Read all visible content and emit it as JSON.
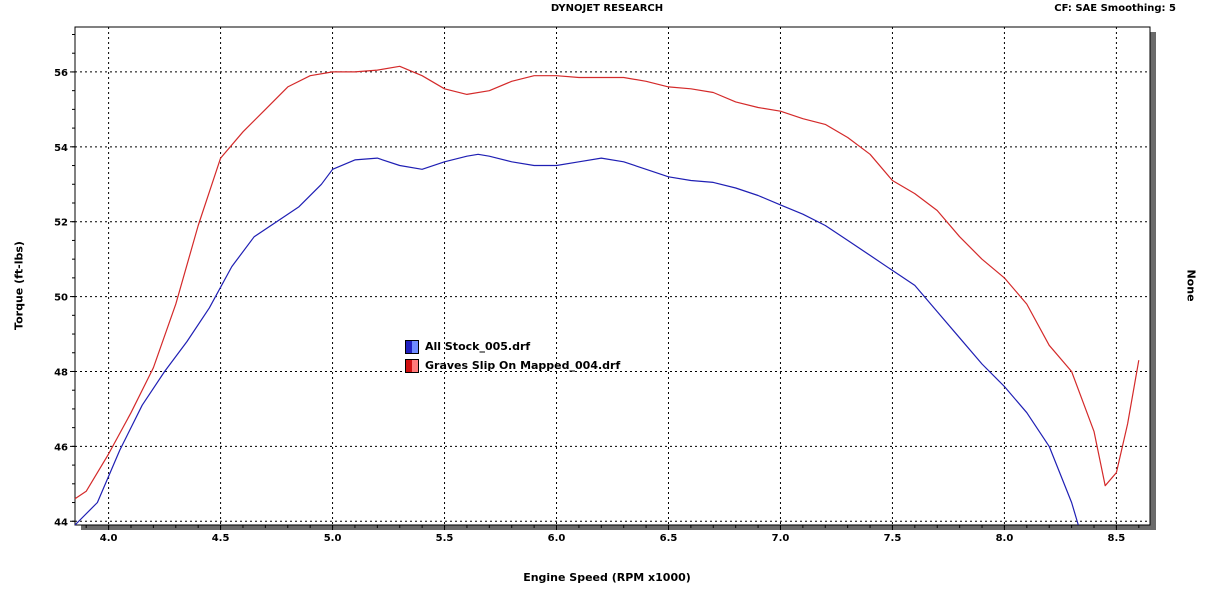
{
  "header": {
    "title": "DYNOJET RESEARCH",
    "cf_text": "CF: SAE  Smoothing: 5"
  },
  "chart_data": {
    "type": "line",
    "xlabel": "Engine Speed (RPM x1000)",
    "ylabel": "Torque (ft-lbs)",
    "y2label": "None",
    "xlim": [
      3.85,
      8.65
    ],
    "ylim": [
      43.9,
      57.2
    ],
    "x_ticks": [
      "4.0",
      "4.5",
      "5.0",
      "5.5",
      "6.0",
      "6.5",
      "7.0",
      "7.5",
      "8.0",
      "8.5"
    ],
    "y_ticks": [
      "44",
      "46",
      "48",
      "50",
      "52",
      "54",
      "56"
    ],
    "grid": true,
    "legend_position": "center-left",
    "series": [
      {
        "name": "All Stock_005.drf",
        "color": "#1f1fb4",
        "x": [
          3.85,
          3.95,
          4.05,
          4.15,
          4.25,
          4.35,
          4.45,
          4.55,
          4.65,
          4.75,
          4.85,
          4.95,
          5.0,
          5.1,
          5.2,
          5.3,
          5.4,
          5.5,
          5.6,
          5.65,
          5.7,
          5.8,
          5.9,
          6.0,
          6.1,
          6.2,
          6.3,
          6.4,
          6.5,
          6.6,
          6.7,
          6.8,
          6.9,
          7.0,
          7.1,
          7.2,
          7.3,
          7.4,
          7.5,
          7.6,
          7.7,
          7.8,
          7.9,
          8.0,
          8.1,
          8.2,
          8.3,
          8.33
        ],
        "y": [
          43.9,
          44.5,
          45.9,
          47.1,
          48.0,
          48.8,
          49.7,
          50.8,
          51.6,
          52.0,
          52.4,
          53.0,
          53.4,
          53.65,
          53.7,
          53.5,
          53.4,
          53.6,
          53.75,
          53.8,
          53.75,
          53.6,
          53.5,
          53.5,
          53.6,
          53.7,
          53.6,
          53.4,
          53.2,
          53.1,
          53.05,
          52.9,
          52.7,
          52.45,
          52.2,
          51.9,
          51.5,
          51.1,
          50.7,
          50.3,
          49.6,
          48.9,
          48.2,
          47.6,
          46.9,
          46.0,
          44.5,
          43.9
        ]
      },
      {
        "name": "Graves Slip On Mapped_004.drf",
        "color": "#d42a2a",
        "x": [
          3.85,
          3.9,
          4.0,
          4.1,
          4.2,
          4.3,
          4.4,
          4.5,
          4.6,
          4.7,
          4.8,
          4.9,
          5.0,
          5.1,
          5.2,
          5.3,
          5.4,
          5.5,
          5.6,
          5.7,
          5.8,
          5.9,
          6.0,
          6.1,
          6.2,
          6.3,
          6.4,
          6.5,
          6.6,
          6.7,
          6.8,
          6.9,
          7.0,
          7.1,
          7.2,
          7.3,
          7.4,
          7.5,
          7.6,
          7.7,
          7.8,
          7.9,
          8.0,
          8.1,
          8.2,
          8.3,
          8.4,
          8.45,
          8.5,
          8.55,
          8.6
        ],
        "y": [
          44.6,
          44.8,
          45.8,
          46.9,
          48.1,
          49.8,
          51.9,
          53.7,
          54.4,
          55.0,
          55.6,
          55.9,
          56.0,
          56.0,
          56.05,
          56.15,
          55.9,
          55.55,
          55.4,
          55.5,
          55.75,
          55.9,
          55.9,
          55.85,
          55.85,
          55.85,
          55.75,
          55.6,
          55.55,
          55.45,
          55.2,
          55.05,
          54.95,
          54.75,
          54.6,
          54.25,
          53.8,
          53.1,
          52.75,
          52.3,
          51.6,
          51.0,
          50.5,
          49.8,
          48.7,
          48.0,
          46.4,
          44.95,
          45.3,
          46.6,
          48.3
        ]
      }
    ]
  }
}
